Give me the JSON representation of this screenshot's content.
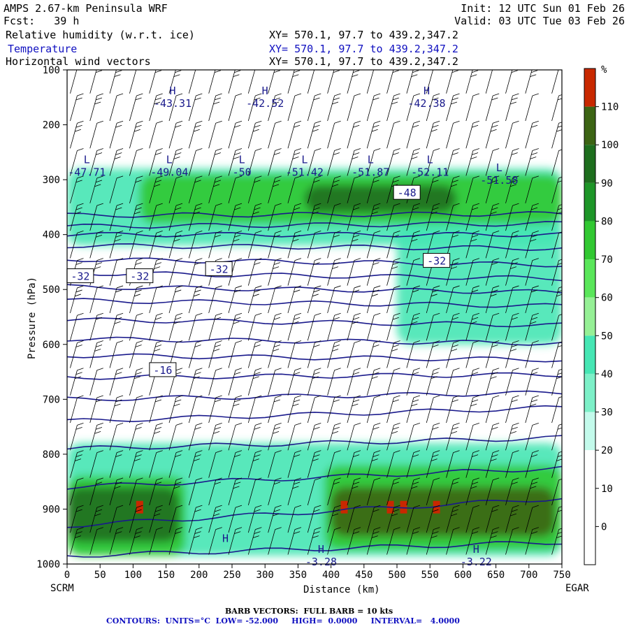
{
  "header": {
    "model": "AMPS 2.67-km Peninsula WRF",
    "fcst": "Fcst:   39 h",
    "init": "Init: 12 UTC Sun 01 Feb 26",
    "valid": "Valid: 03 UTC Tue 03 Feb 26",
    "field1": "Relative humidity (w.r.t. ice)",
    "field2": "Temperature",
    "field3": "Horizontal wind vectors",
    "xy1": "XY= 570.1, 97.7 to 439.2,347.2",
    "xy2": "XY= 570.1, 97.7 to 439.2,347.2",
    "xy3": "XY= 570.1, 97.7 to 439.2,347.2"
  },
  "chart_data": {
    "type": "heatmap",
    "xlabel": "Distance (km)",
    "ylabel": "Pressure (hPa)",
    "xlim": [
      0,
      750
    ],
    "ylim": [
      1000,
      100
    ],
    "x_ticks": [
      0,
      50,
      100,
      150,
      200,
      250,
      300,
      350,
      400,
      450,
      500,
      550,
      600,
      650,
      700,
      750
    ],
    "y_ticks": [
      100,
      200,
      300,
      400,
      500,
      600,
      700,
      800,
      900,
      1000
    ],
    "start_label": "SCRM",
    "end_label": "EGAR",
    "colorbar": {
      "unit": "%",
      "levels": [
        110,
        100,
        90,
        80,
        70,
        60,
        50,
        40,
        30,
        20,
        10,
        0
      ],
      "colors": [
        "#c82800",
        "#3c6414",
        "#1e6e1e",
        "#1e9628",
        "#32c832",
        "#5ae65a",
        "#96f096",
        "#46e6b4",
        "#7df0c8",
        "#c3faeb",
        "#ffffff",
        "#ffffff",
        "#ffffff"
      ]
    },
    "temperature_contours": {
      "units": "°C",
      "low": -52.0,
      "high": 0.0,
      "interval": 4.0,
      "pressures_at_x0": [
        985,
        930,
        860,
        790,
        740,
        700,
        660,
        620,
        590,
        555,
        520,
        495,
        470,
        445,
        420,
        400,
        385,
        365
      ],
      "pressures_at_x750": [
        960,
        880,
        825,
        770,
        715,
        688,
        655,
        628,
        598,
        565,
        530,
        505,
        480,
        455,
        425,
        400,
        380,
        362
      ],
      "labels": [
        {
          "text": "-32",
          "x": 20,
          "p": 475
        },
        {
          "text": "-32",
          "x": 110,
          "p": 475
        },
        {
          "text": "-32",
          "x": 230,
          "p": 462
        },
        {
          "text": "-32",
          "x": 560,
          "p": 447
        },
        {
          "text": "-16",
          "x": 145,
          "p": 646
        },
        {
          "text": "-48",
          "x": 515,
          "p": 323
        }
      ],
      "extrema": [
        {
          "type": "H",
          "value": "-43.31",
          "x": 160,
          "p": 160
        },
        {
          "type": "H",
          "value": "-42.52",
          "x": 300,
          "p": 160
        },
        {
          "type": "H",
          "value": "-42.38",
          "x": 545,
          "p": 160
        },
        {
          "type": "L",
          "value": "-47.71",
          "x": 30,
          "p": 285
        },
        {
          "type": "L",
          "value": "-49.04",
          "x": 155,
          "p": 285
        },
        {
          "type": "L",
          "value": "-50",
          "x": 265,
          "p": 285
        },
        {
          "type": "L",
          "value": "-51.42",
          "x": 360,
          "p": 285
        },
        {
          "type": "L",
          "value": "-51.87",
          "x": 460,
          "p": 285
        },
        {
          "type": "L",
          "value": "-52.11",
          "x": 550,
          "p": 285
        },
        {
          "type": "L",
          "value": "-51.58",
          "x": 655,
          "p": 300
        },
        {
          "type": "H",
          "value": "",
          "x": 240,
          "p": 975
        },
        {
          "type": "H",
          "value": "-3.28",
          "x": 385,
          "p": 995
        },
        {
          "type": "H",
          "value": "-3.22",
          "x": 620,
          "p": 995
        }
      ]
    },
    "humidity_regions": [
      {
        "level": 40,
        "x0": 0,
        "x1": 750,
        "p0": 280,
        "p1": 420
      },
      {
        "level": 70,
        "x0": 110,
        "x1": 750,
        "p0": 290,
        "p1": 380
      },
      {
        "level": 90,
        "x0": 360,
        "x1": 590,
        "p0": 310,
        "p1": 360
      },
      {
        "level": 40,
        "x0": 500,
        "x1": 750,
        "p0": 380,
        "p1": 600
      },
      {
        "level": 40,
        "x0": 0,
        "x1": 750,
        "p0": 780,
        "p1": 985
      },
      {
        "level": 70,
        "x0": 0,
        "x1": 180,
        "p0": 840,
        "p1": 985
      },
      {
        "level": 90,
        "x0": 0,
        "x1": 170,
        "p0": 860,
        "p1": 960
      },
      {
        "level": 70,
        "x0": 390,
        "x1": 750,
        "p0": 820,
        "p1": 975
      },
      {
        "level": 100,
        "x0": 400,
        "x1": 740,
        "p0": 860,
        "p1": 950
      }
    ],
    "saturated_spots_x": [
      110,
      420,
      490,
      510,
      560
    ],
    "wind_barbs": {
      "x": [
        10,
        40,
        70,
        100,
        130,
        160,
        190,
        220,
        250,
        280,
        310,
        340,
        370,
        400,
        430,
        460,
        490,
        520,
        550,
        580,
        610,
        640,
        670,
        700,
        740
      ],
      "p": [
        120,
        170,
        220,
        270,
        320,
        370,
        420,
        470,
        520,
        570,
        620,
        670,
        720,
        770,
        820,
        870,
        920,
        960
      ]
    }
  },
  "footer": {
    "barb_note": "BARB VECTORS:  FULL BARB = 10 kts",
    "contour_note": "CONTOURS:  UNITS=°C  LOW= -52.000     HIGH=  0.0000     INTERVAL=   4.0000"
  },
  "colors": {
    "temp_contour": "#1a1a8c",
    "barb": "#000000",
    "frame": "#000000"
  }
}
